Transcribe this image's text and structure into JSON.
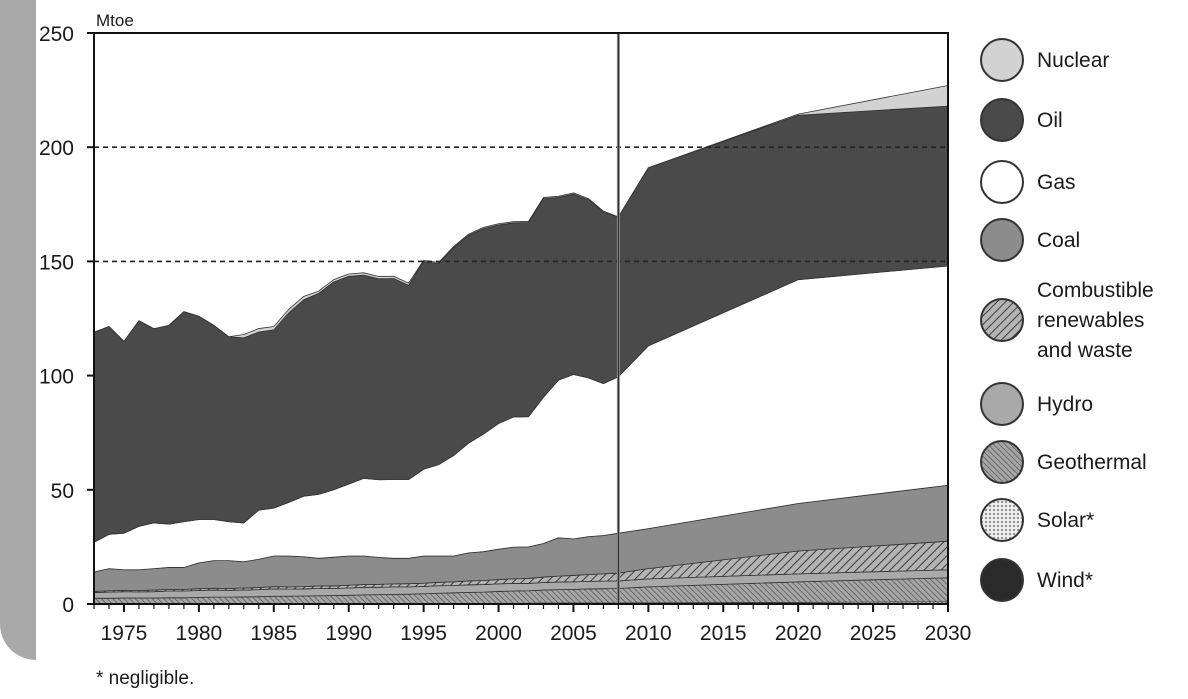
{
  "chart_data": {
    "type": "area",
    "title": "",
    "ylabel": "Mtoe",
    "xlabel": "",
    "xlim": [
      1973,
      2030
    ],
    "ylim": [
      0,
      250
    ],
    "x_ticks": [
      1975,
      1980,
      1985,
      1990,
      1995,
      2000,
      2005,
      2010,
      2015,
      2020,
      2025,
      2030
    ],
    "y_ticks": [
      0,
      50,
      100,
      150,
      200,
      250
    ],
    "dashed_gridlines": [
      150,
      200
    ],
    "projection_start": 2008,
    "stack_order_bottom_to_top": [
      "Wind*",
      "Solar*",
      "Geothermal",
      "Hydro",
      "Combustible renewables and waste",
      "Coal",
      "Gas",
      "Oil",
      "Nuclear"
    ],
    "x": [
      1973,
      1974,
      1975,
      1976,
      1977,
      1978,
      1979,
      1980,
      1981,
      1982,
      1983,
      1984,
      1985,
      1986,
      1987,
      1988,
      1989,
      1990,
      1991,
      1992,
      1993,
      1994,
      1995,
      1996,
      1997,
      1998,
      1999,
      2000,
      2001,
      2002,
      2003,
      2004,
      2005,
      2006,
      2007,
      2008,
      2010,
      2020,
      2030
    ],
    "series": [
      {
        "name": "Wind*",
        "values": [
          0,
          0,
          0,
          0,
          0,
          0,
          0,
          0,
          0,
          0,
          0,
          0,
          0,
          0,
          0,
          0,
          0,
          0,
          0,
          0,
          0,
          0,
          0,
          0,
          0,
          0,
          0,
          0,
          0,
          0,
          0.1,
          0.1,
          0.1,
          0.1,
          0.1,
          0.1,
          0.1,
          0.2,
          0.3
        ]
      },
      {
        "name": "Solar*",
        "values": [
          0.1,
          0.1,
          0.1,
          0.1,
          0.1,
          0.1,
          0.1,
          0.1,
          0.1,
          0.1,
          0.1,
          0.1,
          0.2,
          0.2,
          0.2,
          0.2,
          0.2,
          0.2,
          0.2,
          0.2,
          0.2,
          0.2,
          0.2,
          0.2,
          0.2,
          0.2,
          0.2,
          0.3,
          0.3,
          0.3,
          0.3,
          0.3,
          0.3,
          0.3,
          0.3,
          0.3,
          0.4,
          0.5,
          0.7
        ]
      },
      {
        "name": "Geothermal",
        "values": [
          2.4,
          2.4,
          2.5,
          2.5,
          2.5,
          2.6,
          2.6,
          2.8,
          2.9,
          2.9,
          3.0,
          3.1,
          3.2,
          3.2,
          3.3,
          3.4,
          3.5,
          3.6,
          3.8,
          3.9,
          4.0,
          4.1,
          4.3,
          4.5,
          4.7,
          4.9,
          5.0,
          5.2,
          5.4,
          5.5,
          5.7,
          5.9,
          6.0,
          6.2,
          6.3,
          6.4,
          7.0,
          9.0,
          10.5
        ]
      },
      {
        "name": "Hydro",
        "values": [
          2.5,
          2.7,
          2.8,
          2.7,
          2.8,
          3.0,
          3.0,
          3.0,
          3.1,
          3.0,
          3.0,
          3.1,
          3.2,
          3.1,
          3.1,
          3.2,
          3.1,
          3.2,
          3.3,
          3.2,
          3.3,
          3.2,
          3.2,
          3.3,
          3.2,
          3.3,
          3.3,
          3.3,
          3.3,
          3.2,
          3.3,
          3.3,
          3.3,
          3.3,
          3.3,
          3.3,
          3.5,
          3.5,
          3.5
        ]
      },
      {
        "name": "Combustible renewables and waste",
        "values": [
          0.5,
          0.6,
          0.6,
          0.6,
          0.7,
          0.7,
          0.7,
          0.8,
          0.8,
          0.8,
          0.9,
          0.9,
          1.0,
          1.0,
          1.0,
          1.1,
          1.1,
          1.2,
          1.2,
          1.3,
          1.3,
          1.4,
          1.4,
          1.5,
          1.6,
          1.7,
          1.8,
          1.9,
          2.0,
          2.2,
          2.4,
          2.6,
          2.8,
          3.0,
          3.2,
          3.4,
          4.5,
          10.0,
          12.5
        ]
      },
      {
        "name": "Coal",
        "values": [
          8.5,
          9.7,
          9.0,
          9.1,
          9.4,
          9.6,
          9.6,
          11.3,
          12.1,
          12.2,
          11.5,
          12.4,
          13.4,
          13.5,
          13.1,
          12.1,
          12.6,
          12.8,
          12.5,
          11.8,
          11.2,
          11.1,
          11.9,
          11.5,
          11.3,
          12.3,
          12.6,
          13.3,
          13.9,
          13.8,
          14.7,
          16.8,
          16.0,
          16.6,
          16.8,
          17.5,
          17.5,
          20.8,
          24.5
        ]
      },
      {
        "name": "Gas",
        "values": [
          13.0,
          15.0,
          16.0,
          19.0,
          20.0,
          19.0,
          20.0,
          19.0,
          18.0,
          17.0,
          17.0,
          21.5,
          21.0,
          23.5,
          26.5,
          28.0,
          29.5,
          31.5,
          34.0,
          34.0,
          34.5,
          34.5,
          38.0,
          40.0,
          44.0,
          48.0,
          51.5,
          55.0,
          57.0,
          57.0,
          64.0,
          69.0,
          72.0,
          69.5,
          66.5,
          68.5,
          80.0,
          98.0,
          96.0
        ]
      },
      {
        "name": "Oil",
        "values": [
          92.0,
          91.0,
          84.0,
          90.0,
          85.0,
          87.0,
          92.0,
          89.0,
          85.0,
          81.0,
          81.0,
          78.0,
          78.0,
          83.0,
          86.0,
          88.0,
          91.0,
          91.0,
          89.0,
          88.0,
          88.0,
          85.0,
          91.0,
          88.0,
          91.0,
          91.0,
          90.0,
          87.0,
          85.0,
          85.0,
          87.0,
          80.0,
          79.0,
          78.0,
          75.0,
          70.0,
          78.0,
          72.0,
          70.0
        ]
      },
      {
        "name": "Nuclear",
        "values": [
          0,
          0,
          0,
          0,
          0,
          0,
          0,
          0,
          0,
          0,
          1.5,
          1.5,
          1.5,
          1.5,
          1.5,
          1.0,
          1.0,
          1.0,
          1.0,
          1.0,
          1.0,
          1.0,
          0.5,
          0.5,
          0.5,
          0.5,
          0.5,
          0.5,
          0.5,
          0.5,
          0.5,
          0.5,
          0.5,
          0.5,
          0.5,
          0,
          0,
          0.5,
          9.0
        ]
      }
    ],
    "legend": [
      {
        "name": "Nuclear",
        "color": "#d2d2d2",
        "pattern": "solid"
      },
      {
        "name": "Oil",
        "color": "#4a4a4a",
        "pattern": "solid"
      },
      {
        "name": "Gas",
        "color": "#ffffff",
        "pattern": "solid"
      },
      {
        "name": "Coal",
        "color": "#8c8c8c",
        "pattern": "solid"
      },
      {
        "name": "Combustible renewables and waste",
        "color": "#9a9a9a",
        "pattern": "diagonal-hatch"
      },
      {
        "name": "Hydro",
        "color": "#a9a9a9",
        "pattern": "solid"
      },
      {
        "name": "Geothermal",
        "color": "#9a9a9a",
        "pattern": "fine-hatch"
      },
      {
        "name": "Solar*",
        "color": "#dcdcdc",
        "pattern": "dots"
      },
      {
        "name": "Wind*",
        "color": "#2a2a2a",
        "pattern": "solid"
      }
    ],
    "legend_lines": {
      "Combustible renewables and waste": [
        "Combustible",
        "renewables",
        "and waste"
      ]
    },
    "legend_placement": "right"
  },
  "footnote": "* negligible."
}
